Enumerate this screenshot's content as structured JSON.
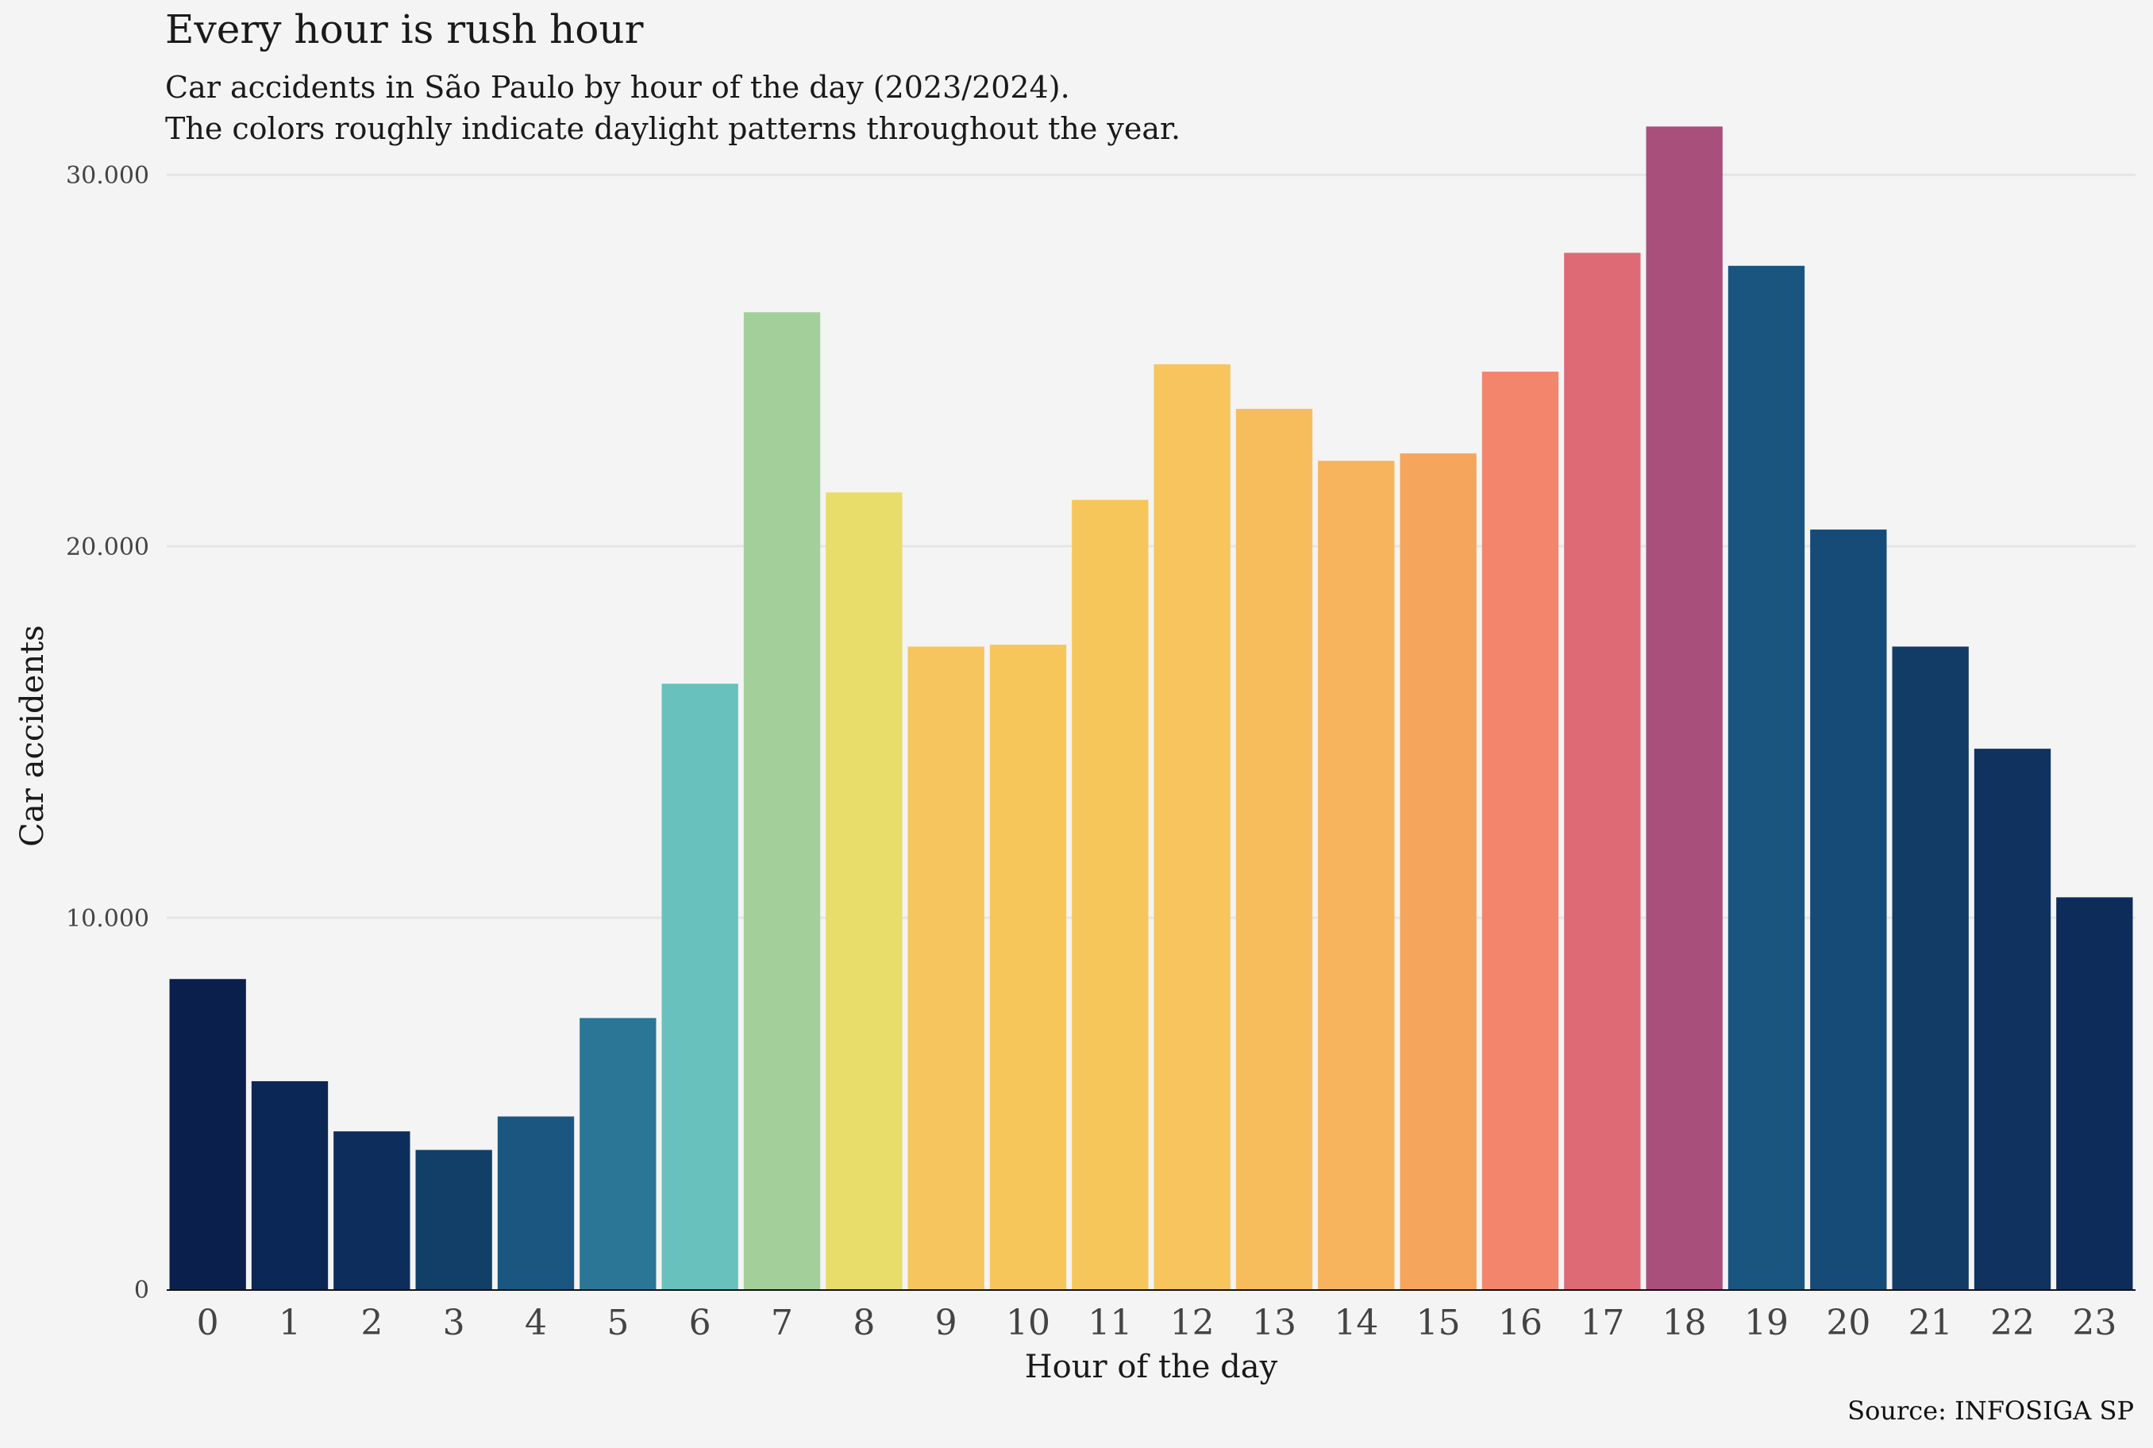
{
  "header": {
    "title": "Every hour is rush hour",
    "subtitle_line1": "Car accidents in São Paulo by hour of the day (2023/2024).",
    "subtitle_line2": "The colors roughly indicate daylight patterns throughout the year."
  },
  "caption": "Source: INFOSIGA SP",
  "chart_data": {
    "type": "bar",
    "xlabel": "Hour of the day",
    "ylabel": "Car accidents",
    "ylim": [
      0,
      31500
    ],
    "yticks": [
      0,
      10000,
      20000,
      30000
    ],
    "ytick_labels": [
      "0",
      "10.000",
      "20.000",
      "30.000"
    ],
    "grid": "horizontal",
    "categories": [
      "0",
      "1",
      "2",
      "3",
      "4",
      "5",
      "6",
      "7",
      "8",
      "9",
      "10",
      "11",
      "12",
      "13",
      "14",
      "15",
      "16",
      "17",
      "18",
      "19",
      "20",
      "21",
      "22",
      "23"
    ],
    "values": [
      8350,
      5600,
      4250,
      3750,
      4650,
      7300,
      16300,
      26300,
      21450,
      17300,
      17350,
      21250,
      24900,
      23700,
      22300,
      22500,
      24700,
      27900,
      31300,
      27550,
      20450,
      17300,
      14550,
      10550
    ],
    "colors": [
      "#0a1f4b",
      "#0b2755",
      "#0d2e5c",
      "#113f68",
      "#1b5681",
      "#2b7596",
      "#68c1bc",
      "#a3d09a",
      "#e8dc6a",
      "#f6c55e",
      "#f7c65b",
      "#f7c65b",
      "#f7c45e",
      "#f7bd5d",
      "#f7b45c",
      "#f5a55c",
      "#f2856c",
      "#de6a76",
      "#a84f7c",
      "#1a5580",
      "#174b77",
      "#123b66",
      "#0f325f",
      "#0d2c5a"
    ]
  }
}
